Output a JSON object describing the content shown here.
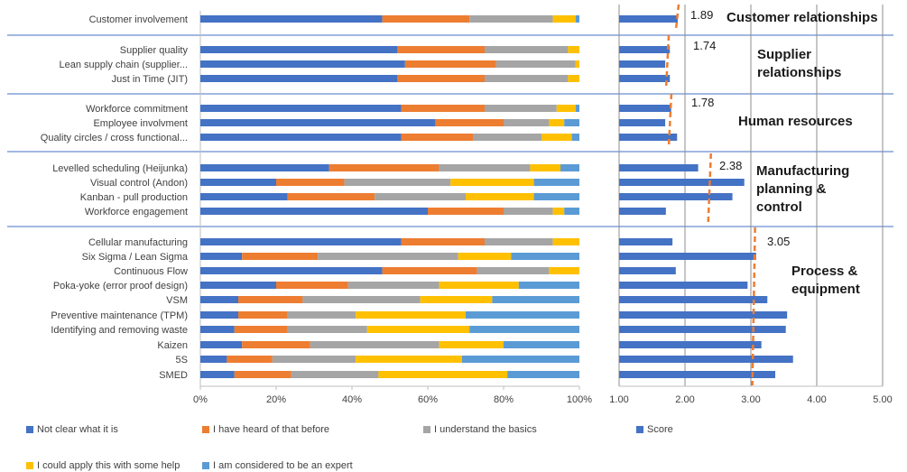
{
  "chart_data": [
    {
      "type": "bar",
      "stacked": "percent",
      "orientation": "horizontal",
      "categories": [
        "Customer involvement",
        "Supplier quality",
        "Lean supply chain (supplier...",
        "Just in Time (JIT)",
        "Workforce commitment",
        "Employee involvment",
        "Quality circles / cross functional...",
        "Levelled scheduling (Heijunka)",
        "Visual control (Andon)",
        "Kanban - pull production",
        "Workforce engagement",
        "Cellular manufacturing",
        "Six Sigma / Lean Sigma",
        "Continuous Flow",
        "Poka-yoke (error proof design)",
        "VSM",
        "Preventive maintenance (TPM)",
        "Identifying and removing waste",
        "Kaizen",
        "5S",
        "SMED"
      ],
      "series": [
        {
          "name": "Not clear what it is",
          "color": "#4472C4",
          "values": [
            48,
            52,
            54,
            52,
            53,
            62,
            53,
            34,
            20,
            23,
            60,
            53,
            11,
            48,
            20,
            10,
            10,
            9,
            11,
            7,
            9
          ]
        },
        {
          "name": "I have heard of that before",
          "color": "#ED7D31",
          "values": [
            23,
            23,
            24,
            23,
            22,
            18,
            19,
            29,
            18,
            23,
            20,
            22,
            20,
            25,
            19,
            17,
            13,
            14,
            18,
            12,
            15
          ]
        },
        {
          "name": "I understand the basics",
          "color": "#A5A5A5",
          "values": [
            22,
            22,
            21,
            22,
            19,
            12,
            18,
            24,
            28,
            24,
            13,
            18,
            37,
            19,
            24,
            31,
            18,
            21,
            34,
            22,
            23
          ]
        },
        {
          "name": "I could apply this with some help",
          "color": "#FFC000",
          "values": [
            6,
            3,
            1,
            3,
            5,
            4,
            8,
            8,
            22,
            18,
            3,
            7,
            14,
            8,
            21,
            19,
            29,
            27,
            17,
            28,
            34
          ]
        },
        {
          "name": "I am considered to be an expert",
          "color": "#5B9BD5",
          "values": [
            1,
            0,
            0,
            0,
            1,
            4,
            2,
            5,
            12,
            12,
            4,
            0,
            18,
            0,
            16,
            23,
            30,
            29,
            20,
            31,
            19
          ]
        }
      ],
      "xlim": [
        0,
        100
      ],
      "xticks": [
        "0%",
        "20%",
        "40%",
        "60%",
        "80%",
        "100%"
      ],
      "grid": false,
      "legend_position": "bottom"
    },
    {
      "type": "bar",
      "orientation": "horizontal",
      "categories": [
        "Customer involvement",
        "Supplier quality",
        "Lean supply chain (supplier...",
        "Just in Time (JIT)",
        "Workforce commitment",
        "Employee involvment",
        "Quality circles / cross functional...",
        "Levelled scheduling (Heijunka)",
        "Visual control (Andon)",
        "Kanban - pull production",
        "Workforce engagement",
        "Cellular manufacturing",
        "Six Sigma / Lean Sigma",
        "Continuous Flow",
        "Poka-yoke (error proof design)",
        "VSM",
        "Preventive maintenance (TPM)",
        "Identifying and removing waste",
        "Kaizen",
        "5S",
        "SMED"
      ],
      "series": [
        {
          "name": "Score",
          "color": "#4472C4",
          "values": [
            1.89,
            1.77,
            1.7,
            1.77,
            1.79,
            1.7,
            1.88,
            2.2,
            2.9,
            2.72,
            1.71,
            1.81,
            3.08,
            1.86,
            2.95,
            3.25,
            3.55,
            3.53,
            3.16,
            3.64,
            3.37
          ]
        }
      ],
      "xlim": [
        1,
        5
      ],
      "xticks": [
        "1.00",
        "2.00",
        "3.00",
        "4.00",
        "5.00"
      ],
      "grid": true,
      "group_averages": [
        {
          "group": "Customer relationships",
          "value": 1.89,
          "label": "1.89"
        },
        {
          "group": "Supplier relationships",
          "value": 1.74,
          "label": "1.74"
        },
        {
          "group": "Human resources",
          "value": 1.78,
          "label": "1.78"
        },
        {
          "group": "Manufacturing planning & control",
          "value": 2.38,
          "label": "2.38"
        },
        {
          "group": "Process & equipment",
          "value": 3.05,
          "label": "3.05"
        }
      ],
      "group_labels": [
        [
          "Customer relationships"
        ],
        [
          "Supplier",
          "relationships"
        ],
        [
          "Human resources"
        ],
        [
          "Manufacturing",
          "planning &",
          "control"
        ],
        [
          "Process &",
          "equipment"
        ]
      ]
    }
  ]
}
